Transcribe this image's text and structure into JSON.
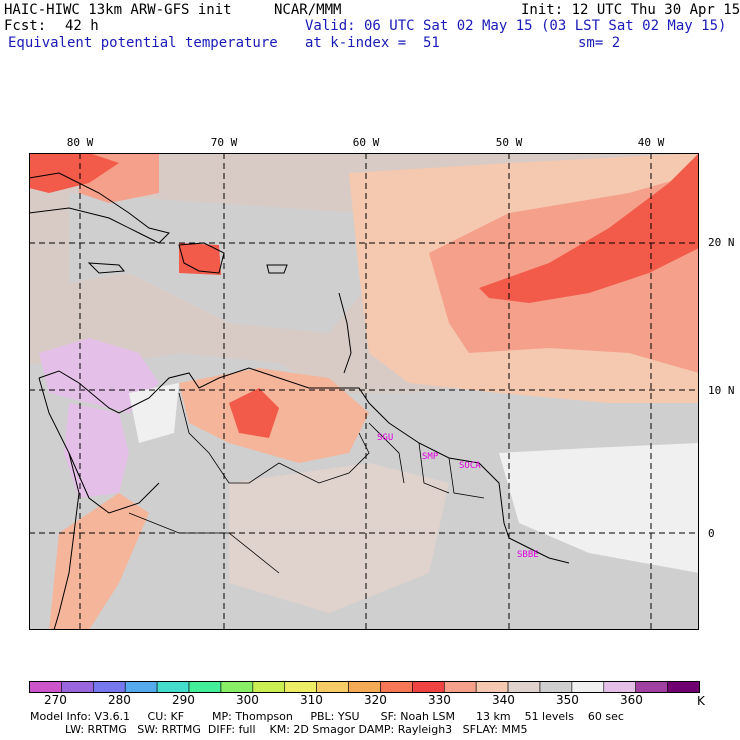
{
  "header": {
    "model": "HAIC-HIWC 13km ARW-GFS init",
    "org": "NCAR/MMM",
    "init": "Init: 12 UTC Thu 30 Apr 15",
    "fcst_label": "Fcst:",
    "fcst_value": "42 h",
    "valid": "Valid: 06 UTC Sat 02 May 15 (03 LST Sat 02 May 15)",
    "field": "Equivalent potential temperature",
    "kindex": "at k-index =  51",
    "smooth": "sm= 2"
  },
  "map": {
    "lon_labels": [
      "80 W",
      "70 W",
      "60 W",
      "50 W",
      "40 W"
    ],
    "lat_labels": [
      "20 N",
      "10 N",
      "0"
    ],
    "stations": [
      "SGU",
      "SMP",
      "SOCA",
      "SBBE"
    ]
  },
  "colorbar": {
    "colors": [
      "#cc55cc",
      "#9966dd",
      "#7777ee",
      "#55aaee",
      "#44ddcc",
      "#44ee99",
      "#88ee66",
      "#ccee55",
      "#eeee66",
      "#f5cc66",
      "#f5aa55",
      "#f57755",
      "#f04444",
      "#f5a08a",
      "#f5c8b0",
      "#e0d2cc",
      "#cfcfcf",
      "#f0f0f0",
      "#e4c0e8",
      "#a040a0",
      "#700070"
    ],
    "labels": [
      "270",
      "280",
      "290",
      "300",
      "310",
      "320",
      "330",
      "340",
      "350",
      "360"
    ],
    "unit": "K"
  },
  "footer": {
    "line1": "Model Info: V3.6.1     CU: KF        MP: Thompson     PBL: YSU      SF: Noah LSM      13 km    51 levels    60 sec",
    "line2": "          LW: RRTMG   SW: RRTMG  DIFF: full    KM: 2D Smagor DAMP: Rayleigh3   SFLAY: MM5"
  },
  "field_colors": {
    "gray": "#cfcfcf",
    "tan": "#e0d2cc",
    "peach": "#f5c8b0",
    "salmon": "#f5a08a",
    "red": "#f25a4a",
    "white": "#f0f0f0",
    "lavender": "#e4c0e8"
  }
}
